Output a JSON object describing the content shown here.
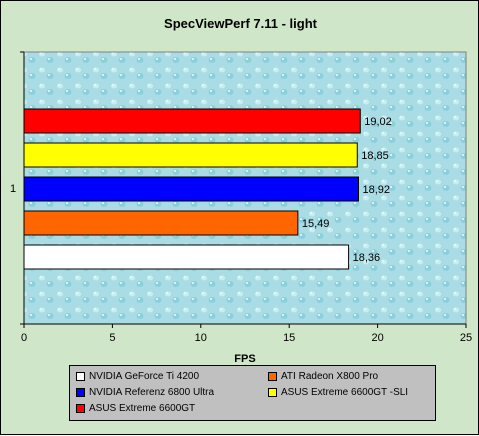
{
  "chart_data": {
    "type": "bar",
    "orientation": "horizontal",
    "title": "SpecViewPerf 7.11 - light",
    "xlabel": "FPS",
    "ylabel": "",
    "category_label": "1",
    "xlim": [
      0,
      25
    ],
    "xticks": [
      "0",
      "5",
      "10",
      "15",
      "20",
      "25"
    ],
    "grid": false,
    "legend_placement": "bottom",
    "series": [
      {
        "name": "ASUS Extreme 6600GT",
        "value": 19.02,
        "label": "19,02",
        "color": "#ff0000"
      },
      {
        "name": "ASUS Extreme 6600GT -SLI",
        "value": 18.85,
        "label": "18,85",
        "color": "#ffff00"
      },
      {
        "name": "NVIDIA  Referenz 6800 Ultra",
        "value": 18.92,
        "label": "18,92",
        "color": "#0000ff"
      },
      {
        "name": "ATI Radeon X800 Pro",
        "value": 15.49,
        "label": "15,49",
        "color": "#ff6600"
      },
      {
        "name": "NVIDIA GeForce Ti 4200",
        "value": 18.36,
        "label": "18,36",
        "color": "#ffffff"
      }
    ],
    "legend": [
      {
        "label": "NVIDIA GeForce Ti 4200",
        "color": "#ffffff"
      },
      {
        "label": "ATI Radeon X800 Pro",
        "color": "#ff6600"
      },
      {
        "label": "NVIDIA  Referenz 6800 Ultra",
        "color": "#0000ff"
      },
      {
        "label": "ASUS Extreme 6600GT -SLI",
        "color": "#ffff00"
      },
      {
        "label": "ASUS Extreme 6600GT",
        "color": "#ff0000"
      }
    ],
    "plot_background": "#a9dce4",
    "figure_background": "#cfe6c8"
  }
}
